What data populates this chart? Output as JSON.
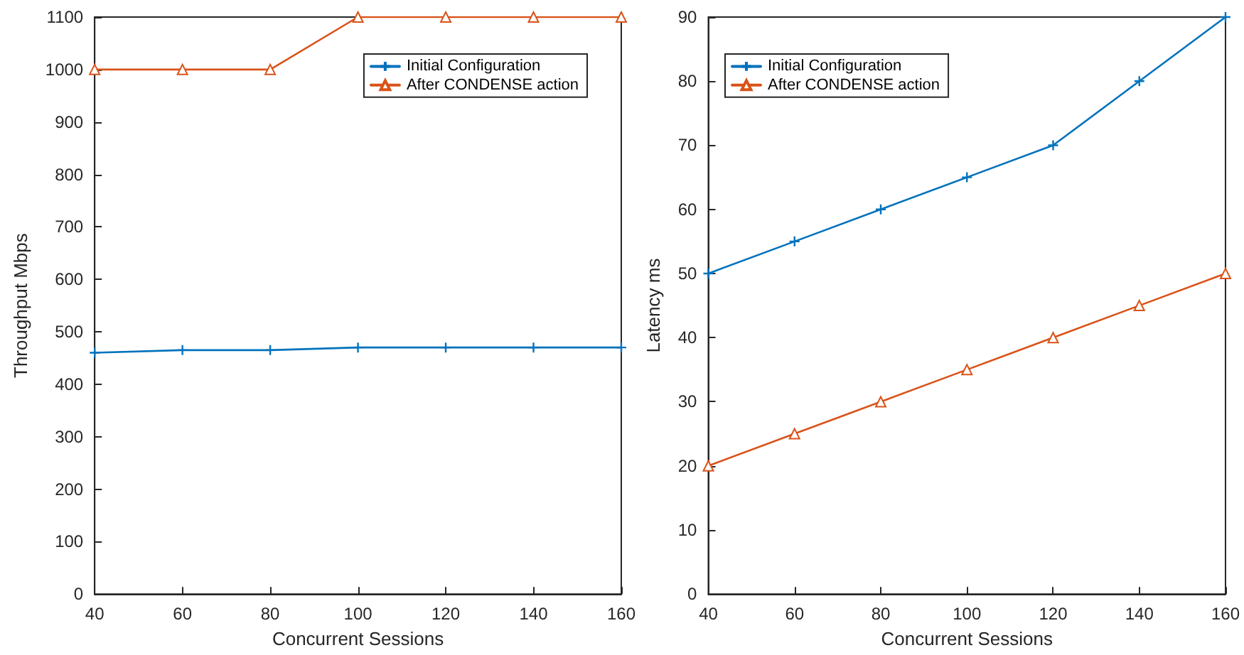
{
  "chart_data": [
    {
      "type": "line",
      "xlabel": "Concurrent Sessions",
      "ylabel": "Throughput Mbps",
      "x": [
        40,
        60,
        80,
        100,
        120,
        140,
        160
      ],
      "series": [
        {
          "name": "Initial Configuration",
          "color": "#0072bd",
          "marker": "cross",
          "values": [
            460,
            465,
            465,
            470,
            470,
            470,
            470
          ]
        },
        {
          "name": "After CONDENSE action",
          "color": "#d95319",
          "marker": "triangle",
          "values": [
            1000,
            1000,
            1000,
            1100,
            1100,
            1100,
            1100
          ]
        }
      ],
      "xlim": [
        40,
        160
      ],
      "xticks": [
        40,
        60,
        80,
        100,
        120,
        140,
        160
      ],
      "ylim": [
        0,
        1100
      ],
      "yticks": [
        0,
        100,
        200,
        300,
        400,
        500,
        600,
        700,
        800,
        900,
        1000,
        1100
      ],
      "grid": false,
      "legend": "top right",
      "line_style": "solid"
    },
    {
      "type": "line",
      "xlabel": "Concurrent Sessions",
      "ylabel": "Latency ms",
      "x": [
        40,
        60,
        80,
        100,
        120,
        140,
        160
      ],
      "series": [
        {
          "name": "Initial Configuration",
          "color": "#0072bd",
          "marker": "cross",
          "values": [
            50,
            55,
            60,
            65,
            70,
            80,
            90
          ]
        },
        {
          "name": "After CONDENSE action",
          "color": "#d95319",
          "marker": "triangle",
          "values": [
            20,
            25,
            30,
            35,
            40,
            45,
            50
          ]
        }
      ],
      "xlim": [
        40,
        160
      ],
      "xticks": [
        40,
        60,
        80,
        100,
        120,
        140,
        160
      ],
      "ylim": [
        0,
        90
      ],
      "yticks": [
        0,
        10,
        20,
        30,
        40,
        50,
        60,
        70,
        80,
        90
      ],
      "grid": false,
      "legend": "top left",
      "line_style": "solid"
    }
  ]
}
